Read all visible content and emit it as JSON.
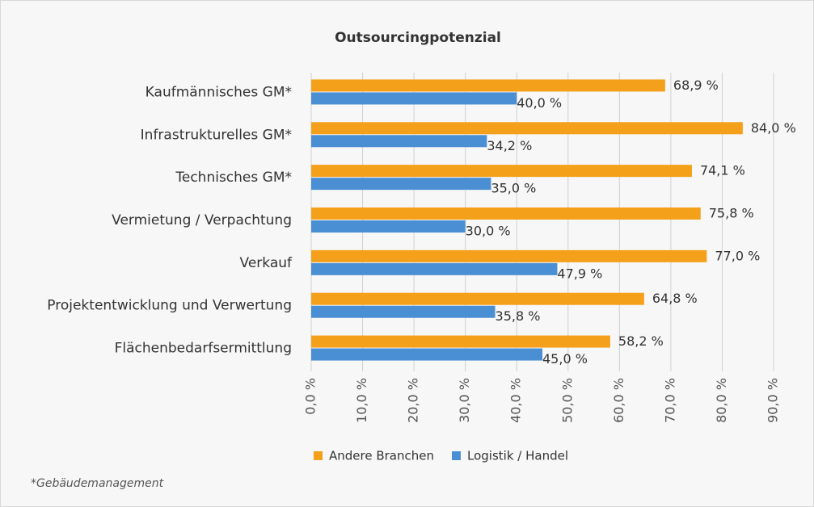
{
  "chart_data": {
    "type": "barh",
    "title": "Outsourcingpotenzial",
    "categories": [
      "Kaufmännisches GM*",
      "Infrastrukturelles GM*",
      "Technisches GM*",
      "Vermietung / Verpachtung",
      "Verkauf",
      "Projektentwicklung und Verwertung",
      "Flächenbedarfsermittlung"
    ],
    "series": [
      {
        "name": "Andere Branchen",
        "color": "#f5a01a",
        "values": [
          68.9,
          84.0,
          74.1,
          75.8,
          77.0,
          64.8,
          58.2
        ],
        "value_labels": [
          "68,9 %",
          "84,0 %",
          "74,1 %",
          "75,8 %",
          "77,0 %",
          "64,8 %",
          "58,2 %"
        ]
      },
      {
        "name": "Logistik / Handel",
        "color": "#4a8fd4",
        "values": [
          40.0,
          34.2,
          35.0,
          30.0,
          47.9,
          35.8,
          45.0
        ],
        "value_labels": [
          "40,0 %",
          "34,2 %",
          "35,0 %",
          "30,0 %",
          "47,9 %",
          "35,8 %",
          "45,0 %"
        ]
      }
    ],
    "xlim": [
      0,
      90
    ],
    "xticks": [
      {
        "value": 0,
        "label": "0,0 %"
      },
      {
        "value": 10,
        "label": "10,0 %"
      },
      {
        "value": 20,
        "label": "20,0 %"
      },
      {
        "value": 30,
        "label": "30,0 %"
      },
      {
        "value": 40,
        "label": "40,0 %"
      },
      {
        "value": 50,
        "label": "50,0 %"
      },
      {
        "value": 60,
        "label": "60,0 %"
      },
      {
        "value": 70,
        "label": "70,0 %"
      },
      {
        "value": 80,
        "label": "80,0 %"
      },
      {
        "value": 90,
        "label": "90,0 %"
      }
    ],
    "grid": true,
    "legend": "bottom",
    "footnote": "*Gebäudemanagement"
  }
}
